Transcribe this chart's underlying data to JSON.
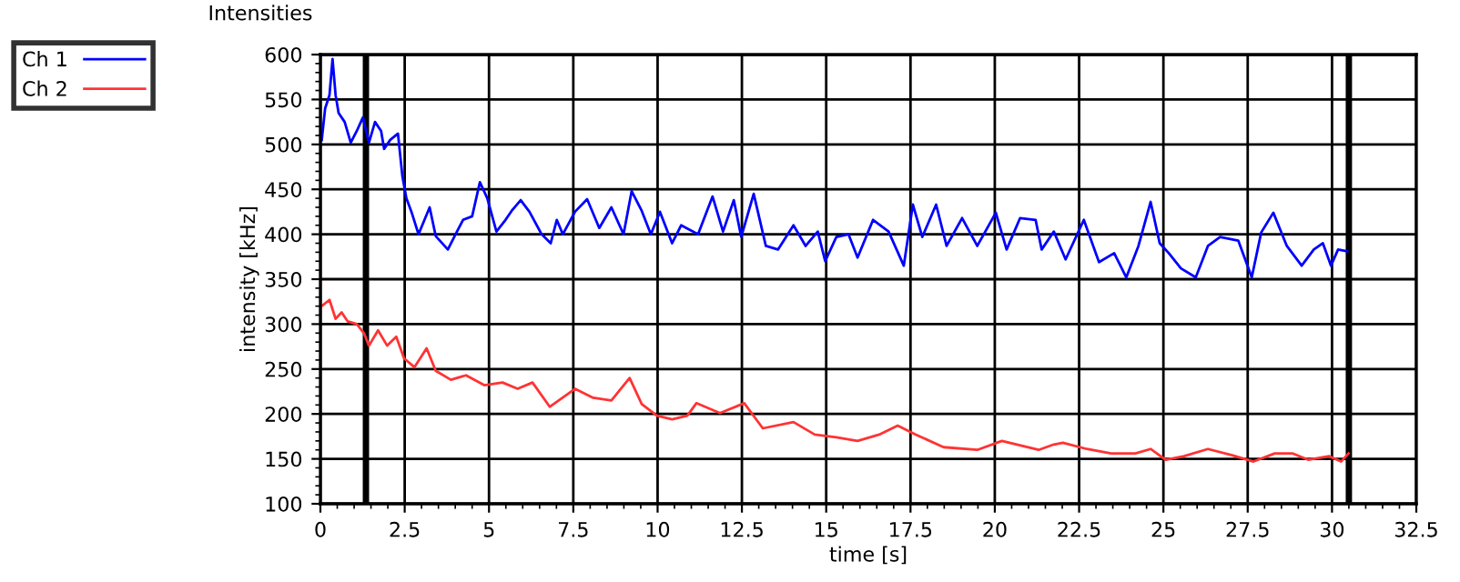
{
  "chart_data": {
    "type": "line",
    "title": "Intensities",
    "xlabel": "time [s]",
    "ylabel": "intensity [kHz]",
    "xlim": [
      0,
      32.5
    ],
    "xticks": [
      0,
      2.5,
      5,
      7.5,
      10,
      12.5,
      15,
      17.5,
      20,
      22.5,
      25,
      27.5,
      30,
      32.5
    ],
    "ylim": [
      100,
      600
    ],
    "yticks": [
      100,
      150,
      200,
      250,
      300,
      350,
      400,
      450,
      500,
      550,
      600
    ],
    "grid": true,
    "legend": "top left",
    "marker": "none",
    "line_style": "solid",
    "ref_lines": [
      {
        "axis": "x",
        "value": 1.35,
        "color": "#000000"
      },
      {
        "axis": "x",
        "value": 30.5,
        "color": "#000000"
      }
    ],
    "series": [
      {
        "name": "Ch 1",
        "color": "#0000ff",
        "x": [
          0.04,
          0.14,
          0.27,
          0.36,
          0.45,
          0.54,
          0.72,
          0.9,
          1.08,
          1.26,
          1.44,
          1.62,
          1.8,
          1.89,
          2.07,
          2.3,
          2.43,
          2.55,
          2.7,
          2.91,
          3.24,
          3.42,
          3.78,
          4.05,
          4.23,
          4.5,
          4.73,
          4.95,
          5.22,
          5.49,
          5.67,
          5.94,
          6.2,
          6.56,
          6.83,
          7.01,
          7.19,
          7.55,
          7.91,
          8.27,
          8.63,
          8.99,
          9.23,
          9.53,
          9.8,
          10.07,
          10.43,
          10.7,
          11.2,
          11.63,
          11.94,
          12.26,
          12.48,
          12.85,
          13.21,
          13.57,
          14.03,
          14.39,
          14.75,
          14.97,
          15.3,
          15.66,
          15.93,
          16.39,
          16.85,
          17.3,
          17.57,
          17.85,
          18.26,
          18.57,
          19.03,
          19.48,
          20.03,
          20.35,
          20.75,
          21.21,
          21.39,
          21.75,
          22.1,
          22.64,
          23.09,
          23.54,
          23.9,
          24.26,
          24.62,
          24.89,
          25.16,
          25.52,
          25.96,
          26.32,
          26.68,
          27.22,
          27.62,
          27.9,
          28.26,
          28.66,
          29.1,
          29.46,
          29.73,
          29.97,
          30.18,
          30.45
        ],
        "values": [
          505,
          540,
          555,
          595,
          555,
          535,
          525,
          502,
          515,
          530,
          502,
          525,
          515,
          495,
          505,
          512,
          465,
          440,
          425,
          400,
          430,
          398,
          383,
          403,
          416,
          420,
          458,
          440,
          403,
          416,
          426,
          438,
          425,
          400,
          390,
          416,
          400,
          425,
          439,
          407,
          430,
          400,
          448,
          426,
          400,
          425,
          390,
          410,
          400,
          442,
          403,
          438,
          397,
          445,
          387,
          383,
          410,
          387,
          403,
          370,
          397,
          400,
          374,
          416,
          403,
          365,
          433,
          397,
          433,
          387,
          418,
          387,
          424,
          383,
          418,
          416,
          383,
          403,
          372,
          416,
          369,
          379,
          352,
          387,
          436,
          390,
          379,
          362,
          352,
          387,
          397,
          393,
          352,
          402,
          424,
          387,
          365,
          383,
          390,
          365,
          383,
          381
        ]
      },
      {
        "name": "Ch 2",
        "color": "#ff3333",
        "x": [
          0.04,
          0.27,
          0.45,
          0.63,
          0.81,
          1.08,
          1.29,
          1.44,
          1.71,
          1.98,
          2.25,
          2.48,
          2.79,
          3.15,
          3.42,
          3.87,
          4.32,
          4.86,
          5.4,
          5.85,
          6.29,
          6.8,
          7.55,
          8.09,
          8.63,
          9.17,
          9.53,
          9.98,
          10.43,
          10.88,
          11.15,
          11.85,
          12.57,
          13.12,
          14.03,
          14.66,
          15.3,
          15.93,
          16.57,
          17.12,
          17.66,
          18.48,
          19.48,
          20.21,
          21.3,
          21.75,
          22.02,
          22.73,
          23.45,
          24.17,
          24.62,
          25.07,
          25.61,
          26.32,
          27.04,
          27.67,
          28.3,
          28.84,
          29.29,
          29.91,
          30.27,
          30.49
        ],
        "values": [
          320,
          327,
          306,
          313,
          303,
          300,
          290,
          276,
          293,
          276,
          286,
          262,
          252,
          273,
          248,
          238,
          243,
          232,
          235,
          228,
          235,
          208,
          228,
          218,
          215,
          240,
          211,
          198,
          194,
          198,
          212,
          201,
          212,
          184,
          191,
          177,
          174,
          170,
          177,
          187,
          177,
          163,
          160,
          170,
          160,
          166,
          168,
          161,
          156,
          156,
          161,
          149,
          153,
          161,
          154,
          147,
          156,
          156,
          149,
          153,
          147,
          156
        ]
      }
    ]
  }
}
